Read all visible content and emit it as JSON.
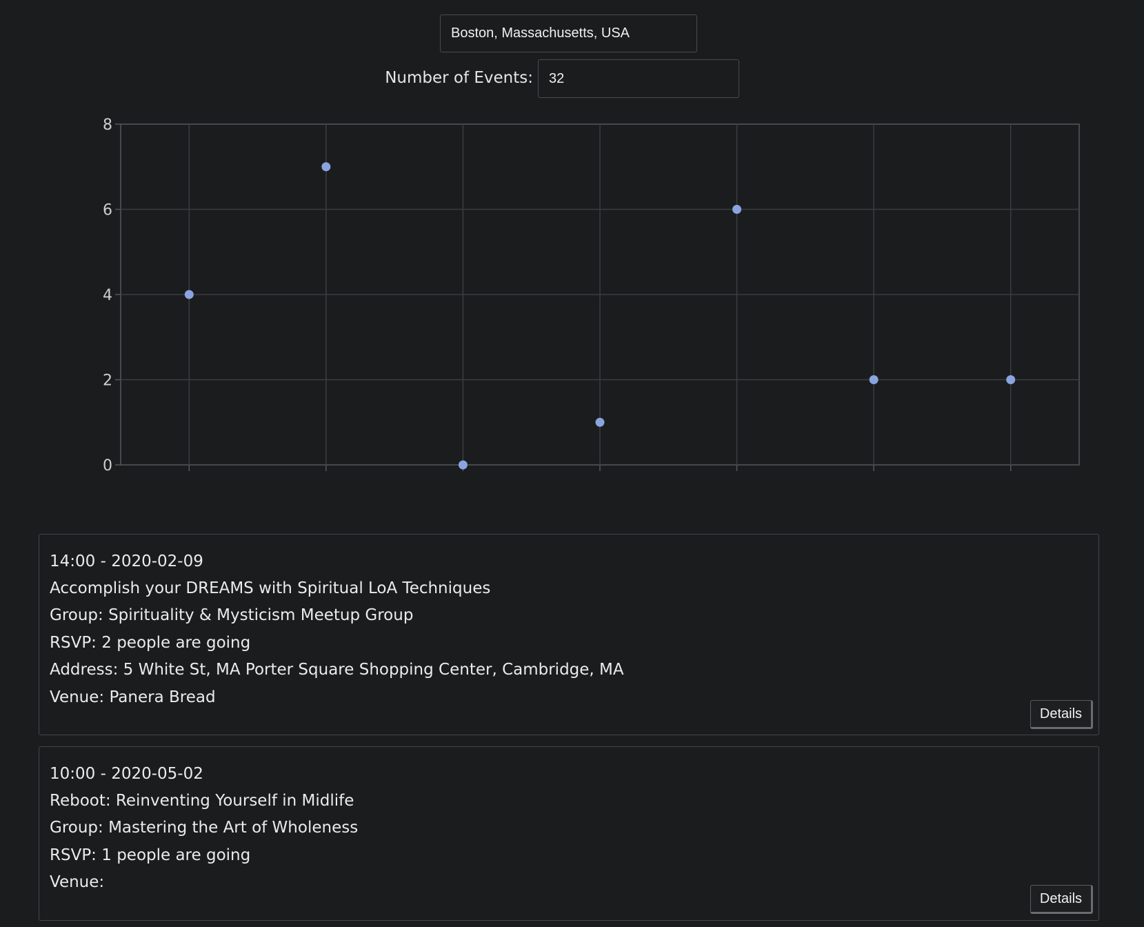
{
  "search": {
    "location_value": "Boston, Massachusetts, USA",
    "events_label": "Number of Events:",
    "events_value": "32"
  },
  "chart_data": {
    "type": "scatter",
    "x": [
      1,
      2,
      3,
      4,
      5,
      6,
      7
    ],
    "values": [
      4,
      7,
      0,
      1,
      6,
      2,
      2
    ],
    "ylim": [
      0,
      8
    ],
    "yticks": [
      0,
      2,
      4,
      6,
      8
    ],
    "xlim": [
      0.5,
      7.5
    ],
    "grid": true,
    "colors": {
      "point": "#8aa4e0",
      "grid": "#3c3d41",
      "axis": "#56575b",
      "tick_label": "#cfcfcf"
    }
  },
  "events": [
    {
      "time": "14:00 - 2020-02-09",
      "title": "Accomplish your DREAMS with Spiritual LoA Techniques",
      "group": "Group: Spirituality & Mysticism Meetup Group",
      "rsvp": "RSVP: 2 people are going",
      "address": "Address: 5 White St, MA Porter Square Shopping Center, Cambridge, MA",
      "venue": "Venue: Panera Bread",
      "details_label": "Details"
    },
    {
      "time": "10:00 - 2020-05-02",
      "title": "Reboot: Reinventing Yourself in Midlife",
      "group": "Group: Mastering the Art of Wholeness",
      "rsvp": "RSVP: 1 people are going",
      "venue": "Venue:",
      "details_label": "Details"
    }
  ]
}
